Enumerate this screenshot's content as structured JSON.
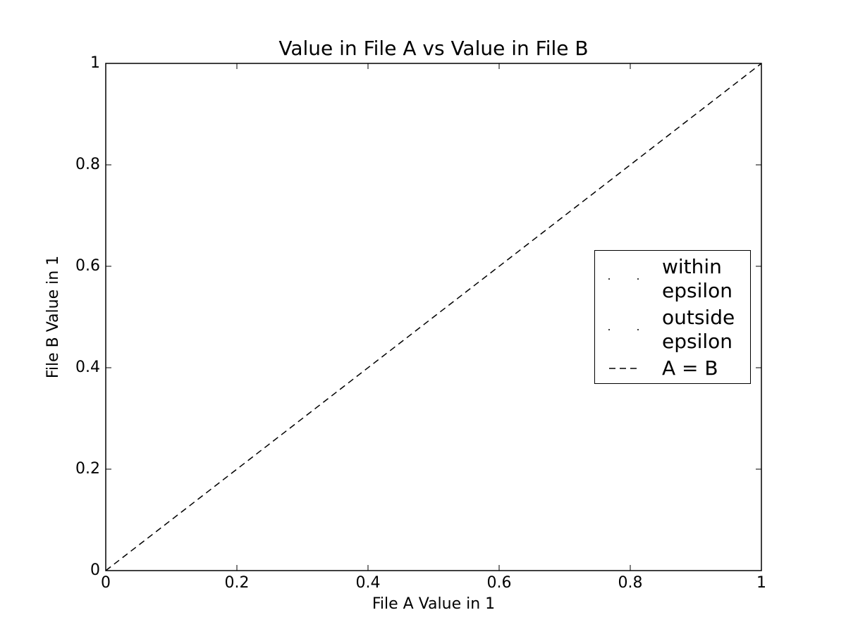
{
  "chart_data": {
    "type": "scatter",
    "title": "Value in File A vs Value in File B",
    "x_label": "File A Value in 1",
    "y_label": "File B Value in 1",
    "xlim": [
      0,
      1
    ],
    "ylim": [
      0,
      1
    ],
    "xticks": [
      0,
      0.2,
      0.4,
      0.6,
      0.8,
      1
    ],
    "yticks": [
      0,
      0.2,
      0.4,
      0.6,
      0.8,
      1
    ],
    "legend": "center right",
    "series": [
      {
        "name": "within epsilon",
        "color": "#000000",
        "kind": "scatter",
        "x": [],
        "values": []
      },
      {
        "name": "outside epsilon",
        "color": "#000000",
        "kind": "scatter",
        "x": [],
        "values": []
      },
      {
        "name": "A = B",
        "color": "#000000",
        "kind": "line",
        "dash": "dashed",
        "x": [
          0,
          1
        ],
        "values": [
          0,
          1
        ]
      }
    ]
  }
}
